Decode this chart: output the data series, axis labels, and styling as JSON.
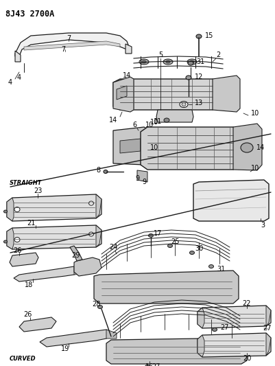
{
  "title": "8J43 2700A",
  "bg_color": "#ffffff",
  "line_color": "#1a1a1a",
  "text_color": "#000000",
  "label_straight": "STRAIGHT",
  "label_curved": "CURVED",
  "figsize": [
    4.01,
    5.33
  ],
  "dpi": 100
}
